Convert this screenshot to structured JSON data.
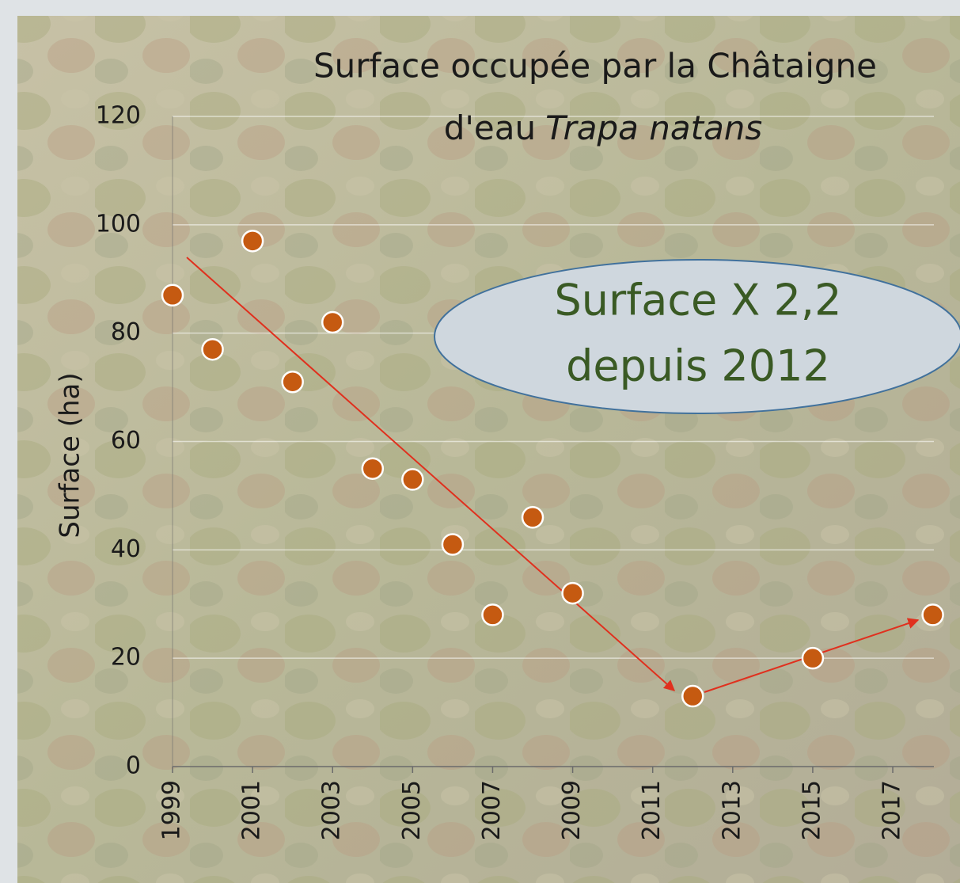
{
  "chart_data": {
    "type": "scatter",
    "title": [
      "Surface occupée par la Châtaigne",
      "d'eau",
      "Trapa natans"
    ],
    "y_label": "Surface (ha)",
    "x": [
      1999,
      2000,
      2001,
      2002,
      2003,
      2004,
      2005,
      2006,
      2007,
      2008,
      2009,
      2012,
      2015,
      2018
    ],
    "values": [
      87,
      77,
      97,
      71,
      82,
      55,
      53,
      41,
      28,
      46,
      32,
      13,
      20,
      28
    ],
    "color": "#c55a11",
    "xlim": [
      1999,
      2018
    ],
    "xticks": [
      1999,
      2001,
      2003,
      2005,
      2007,
      2009,
      2011,
      2013,
      2015,
      2017
    ],
    "ylim": [
      0,
      120
    ],
    "yticks": [
      0,
      20,
      40,
      60,
      80,
      100,
      120
    ],
    "grid": true,
    "annotation": [
      "Surface X 2,2",
      "depuis 2012"
    ]
  }
}
